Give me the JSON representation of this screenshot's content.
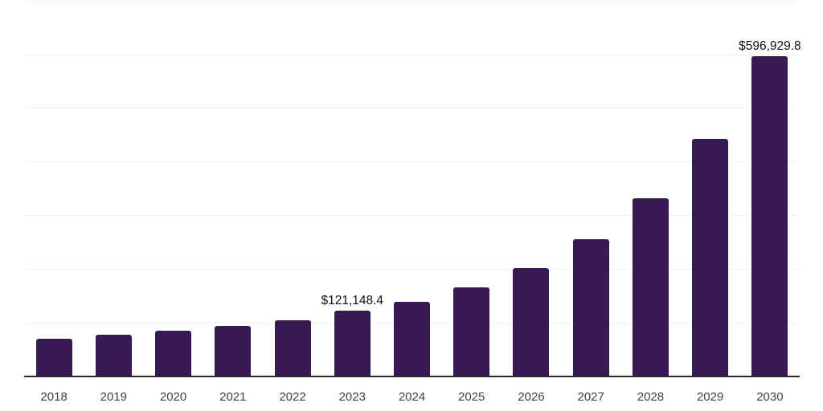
{
  "chart_data": {
    "type": "bar",
    "title": "",
    "xlabel": "",
    "ylabel": "",
    "categories": [
      "2018",
      "2019",
      "2020",
      "2021",
      "2022",
      "2023",
      "2024",
      "2025",
      "2026",
      "2027",
      "2028",
      "2029",
      "2030"
    ],
    "values": [
      68700,
      75800,
      84100,
      93100,
      104100,
      121148.4,
      138200,
      164700,
      201000,
      255200,
      331400,
      442000,
      596929.8
    ],
    "data_labels": [
      "",
      "",
      "",
      "",
      "",
      "$121,148.4",
      "",
      "",
      "",
      "",
      "",
      "",
      "$596,929.8"
    ],
    "ylim": [
      0,
      700000
    ],
    "gridline_step": 100000,
    "grid": true,
    "legend": "none",
    "y_tick_labels_visible": false,
    "colors": {
      "bar": "#371953",
      "gridline": "#f2f2f2",
      "axis_line": "#2b2b2b",
      "value_label": "#111111",
      "x_axis_label": "#404040",
      "background": "#ffffff"
    }
  }
}
